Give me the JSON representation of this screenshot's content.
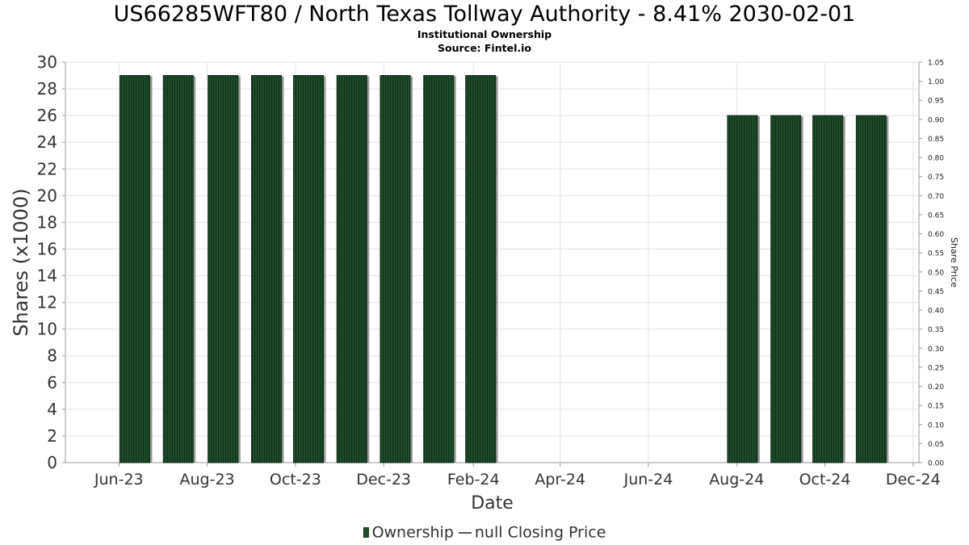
{
  "title": "US66285WFT80 / North Texas Tollway Authority - 8.41% 2030-02-01",
  "subtitle1": "Institutional Ownership",
  "subtitle2": "Source: Fintel.io",
  "legend": {
    "ownership": "Ownership",
    "price": "null Closing Price"
  },
  "colors": {
    "bar": "#1f4d2b",
    "bar_shadow": "#9a9a9a",
    "grid": "#e3e3e3",
    "axis": "#999999"
  },
  "chart_data": {
    "type": "bar",
    "title": "US66285WFT80 / North Texas Tollway Authority - 8.41% 2030-02-01",
    "xlabel": "Date",
    "ylabel": "Shares (x1000)",
    "y2label": "Share Price",
    "ylim": [
      0,
      30
    ],
    "y2lim": [
      0.0,
      1.05
    ],
    "xlim": [
      "2023-04-25",
      "2024-12-05"
    ],
    "grid": true,
    "legend_position": "bottom",
    "yticks": [
      "0",
      "2",
      "4",
      "6",
      "8",
      "10",
      "12",
      "14",
      "16",
      "18",
      "20",
      "22",
      "24",
      "26",
      "28",
      "30"
    ],
    "y2ticks": [
      "0.00",
      "0.05",
      "0.10",
      "0.15",
      "0.20",
      "0.25",
      "0.30",
      "0.35",
      "0.40",
      "0.45",
      "0.50",
      "0.55",
      "0.60",
      "0.65",
      "0.70",
      "0.75",
      "0.80",
      "0.85",
      "0.90",
      "0.95",
      "1.00",
      "1.05"
    ],
    "xticks": [
      {
        "date": "2023-06-01",
        "label": "Jun-23"
      },
      {
        "date": "2023-08-01",
        "label": "Aug-23"
      },
      {
        "date": "2023-10-01",
        "label": "Oct-23"
      },
      {
        "date": "2023-12-01",
        "label": "Dec-23"
      },
      {
        "date": "2024-02-01",
        "label": "Feb-24"
      },
      {
        "date": "2024-04-01",
        "label": "Apr-24"
      },
      {
        "date": "2024-06-01",
        "label": "Jun-24"
      },
      {
        "date": "2024-08-01",
        "label": "Aug-24"
      },
      {
        "date": "2024-10-01",
        "label": "Oct-24"
      },
      {
        "date": "2024-12-01",
        "label": "Dec-24"
      }
    ],
    "series": [
      {
        "name": "Ownership",
        "points": [
          {
            "x": "2023-06-12",
            "y": 29
          },
          {
            "x": "2023-07-12",
            "y": 29
          },
          {
            "x": "2023-08-12",
            "y": 29
          },
          {
            "x": "2023-09-11",
            "y": 29
          },
          {
            "x": "2023-10-10",
            "y": 29
          },
          {
            "x": "2023-11-09",
            "y": 29
          },
          {
            "x": "2023-12-09",
            "y": 29
          },
          {
            "x": "2024-01-08",
            "y": 29
          },
          {
            "x": "2024-02-06",
            "y": 29
          },
          {
            "x": "2024-08-05",
            "y": 26
          },
          {
            "x": "2024-09-04",
            "y": 26
          },
          {
            "x": "2024-10-03",
            "y": 26
          },
          {
            "x": "2024-11-02",
            "y": 26
          }
        ]
      }
    ]
  }
}
